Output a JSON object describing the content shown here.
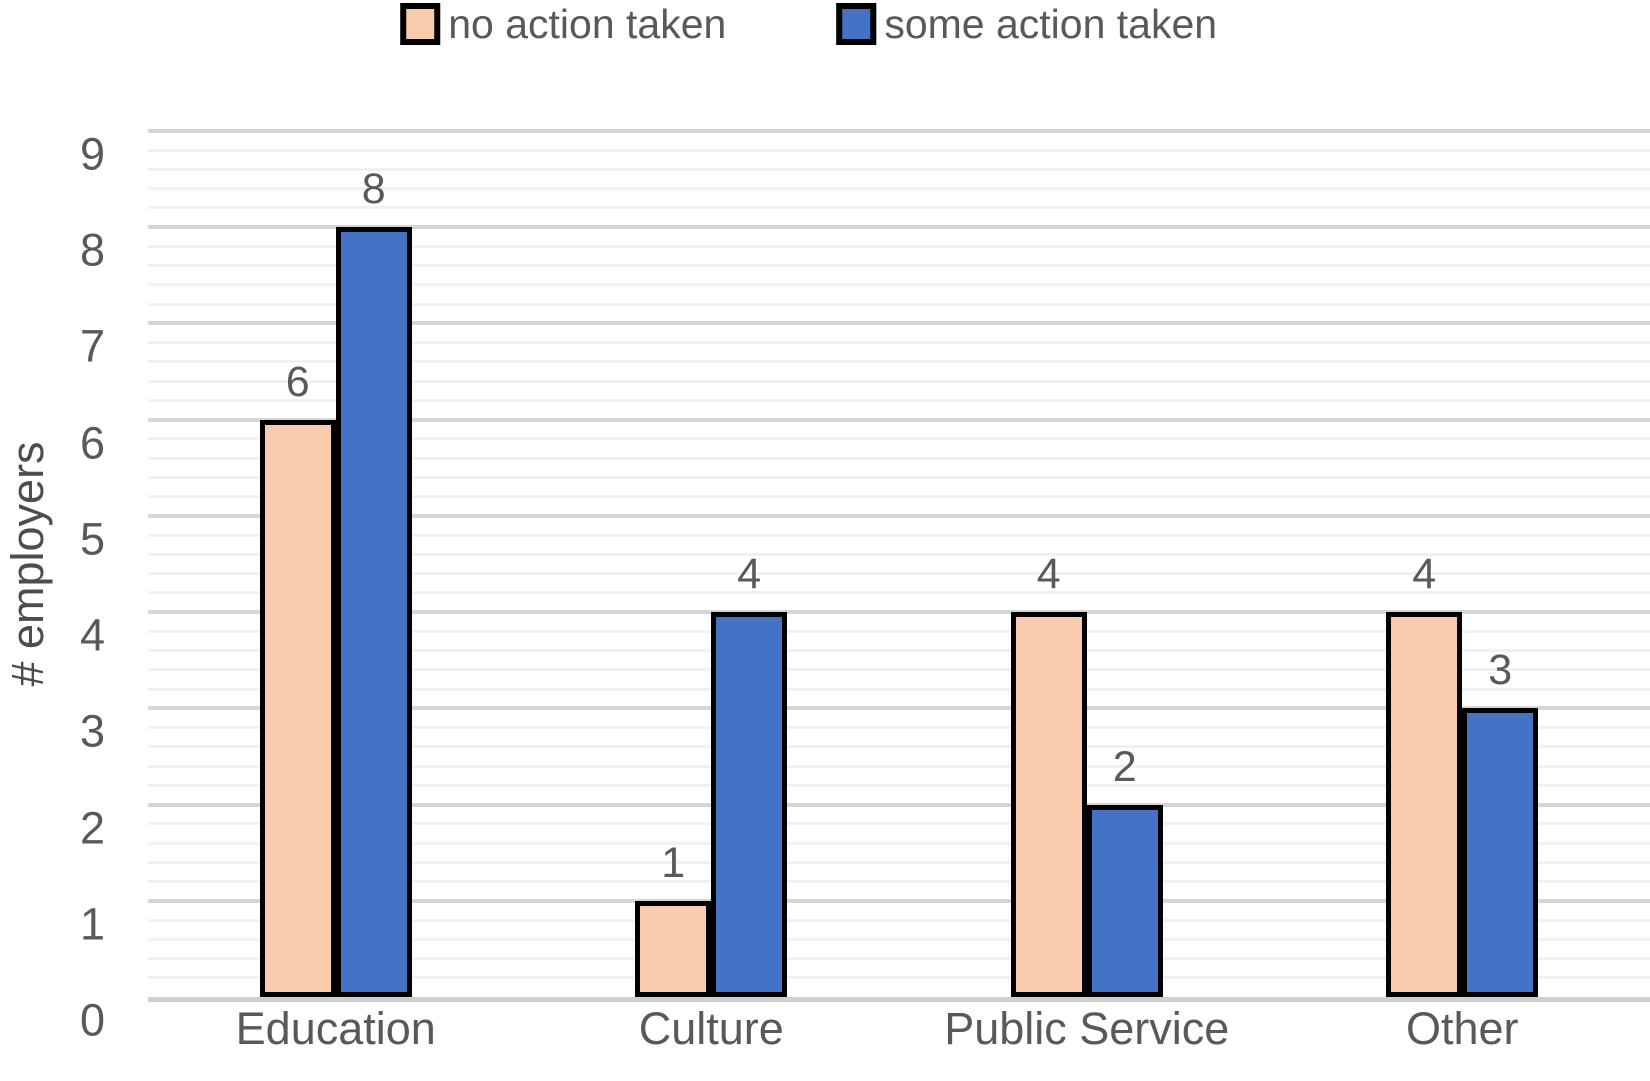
{
  "chart_data": {
    "type": "bar",
    "title": "",
    "categories": [
      "Education",
      "Culture",
      "Public Service",
      "Other"
    ],
    "series": [
      {
        "name": "no action taken",
        "color": "#F7CBAC",
        "values": [
          6,
          1,
          4,
          4
        ]
      },
      {
        "name": "some action taken",
        "color": "#4472C4",
        "values": [
          8,
          4,
          2,
          3
        ]
      }
    ],
    "xlabel": "",
    "ylabel": "# employers",
    "ylim": [
      0,
      9
    ],
    "y_tick_step": 1,
    "y_minor_gridline_step": 0.2,
    "grid": "horizontal, major and minor, on",
    "legend_position": "top-center",
    "data_labels": "values shown above each bar",
    "bar_border_color": "#000000",
    "major_gridline_color": "#d6d6d6",
    "minor_gridline_color": "#f1f1f1",
    "axis_line_color": "#cfcfcf",
    "text_color": "#595959"
  }
}
